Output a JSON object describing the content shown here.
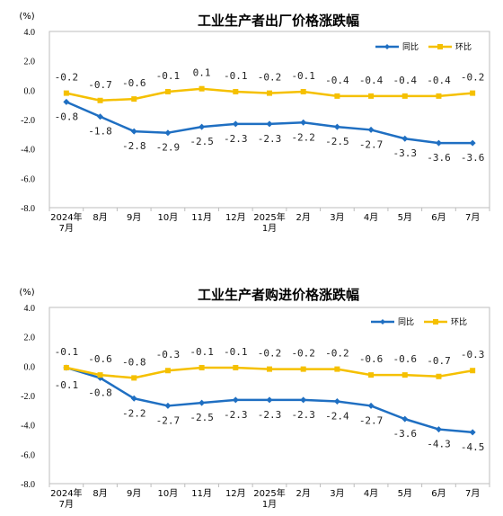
{
  "chart_data": [
    {
      "type": "line",
      "title": "工业生产者出厂价格涨跌幅",
      "unit": "(%)",
      "ylim": [
        -8.0,
        4.0
      ],
      "yticks": [
        "4.0",
        "2.0",
        "0.0",
        "-2.0",
        "-4.0",
        "-6.0",
        "-8.0"
      ],
      "grid": false,
      "legend_position": "top-right",
      "categories": [
        [
          "2024年",
          "7月"
        ],
        [
          "8月"
        ],
        [
          "9月"
        ],
        [
          "10月"
        ],
        [
          "11月"
        ],
        [
          "12月"
        ],
        [
          "2025年",
          "1月"
        ],
        [
          "2月"
        ],
        [
          "3月"
        ],
        [
          "4月"
        ],
        [
          "5月"
        ],
        [
          "6月"
        ],
        [
          "7月"
        ]
      ],
      "series": [
        {
          "name": "同比",
          "color": "#1f6fc2",
          "values": [
            -0.8,
            -1.8,
            -2.8,
            -2.9,
            -2.5,
            -2.3,
            -2.3,
            -2.2,
            -2.5,
            -2.7,
            -3.3,
            -3.6,
            -3.6
          ],
          "labels": [
            "-0.8",
            "-1.8",
            "-2.8",
            "-2.9",
            "-2.5",
            "-2.3",
            "-2.3",
            "-2.2",
            "-2.5",
            "-2.7",
            "-3.3",
            "-3.6",
            "-3.6"
          ]
        },
        {
          "name": "环比",
          "color": "#f5c000",
          "values": [
            -0.2,
            -0.7,
            -0.6,
            -0.1,
            0.1,
            -0.1,
            -0.2,
            -0.1,
            -0.4,
            -0.4,
            -0.4,
            -0.4,
            -0.2
          ],
          "labels": [
            "-0.2",
            "-0.7",
            "-0.6",
            "-0.1",
            "0.1",
            "-0.1",
            "-0.2",
            "-0.1",
            "-0.4",
            "-0.4",
            "-0.4",
            "-0.4",
            "-0.2"
          ]
        }
      ]
    },
    {
      "type": "line",
      "title": "工业生产者购进价格涨跌幅",
      "unit": "(%)",
      "ylim": [
        -8.0,
        4.0
      ],
      "yticks": [
        "4.0",
        "2.0",
        "0.0",
        "-2.0",
        "-4.0",
        "-6.0",
        "-8.0"
      ],
      "grid": false,
      "legend_position": "top-right",
      "categories": [
        [
          "2024年",
          "7月"
        ],
        [
          "8月"
        ],
        [
          "9月"
        ],
        [
          "10月"
        ],
        [
          "11月"
        ],
        [
          "12月"
        ],
        [
          "2025年",
          "1月"
        ],
        [
          "2月"
        ],
        [
          "3月"
        ],
        [
          "4月"
        ],
        [
          "5月"
        ],
        [
          "6月"
        ],
        [
          "7月"
        ]
      ],
      "series": [
        {
          "name": "同比",
          "color": "#1f6fc2",
          "values": [
            -0.1,
            -0.8,
            -2.2,
            -2.7,
            -2.5,
            -2.3,
            -2.3,
            -2.3,
            -2.4,
            -2.7,
            -3.6,
            -4.3,
            -4.5
          ],
          "labels": [
            "-0.1",
            "-0.8",
            "-2.2",
            "-2.7",
            "-2.5",
            "-2.3",
            "-2.3",
            "-2.3",
            "-2.4",
            "-2.7",
            "-3.6",
            "-4.3",
            "-4.5"
          ]
        },
        {
          "name": "环比",
          "color": "#f5c000",
          "values": [
            -0.1,
            -0.6,
            -0.8,
            -0.3,
            -0.1,
            -0.1,
            -0.2,
            -0.2,
            -0.2,
            -0.6,
            -0.6,
            -0.7,
            -0.3
          ],
          "labels": [
            "-0.1",
            "-0.6",
            "-0.8",
            "-0.3",
            "-0.1",
            "-0.1",
            "-0.2",
            "-0.2",
            "-0.2",
            "-0.6",
            "-0.6",
            "-0.7",
            "-0.3"
          ]
        }
      ]
    }
  ]
}
